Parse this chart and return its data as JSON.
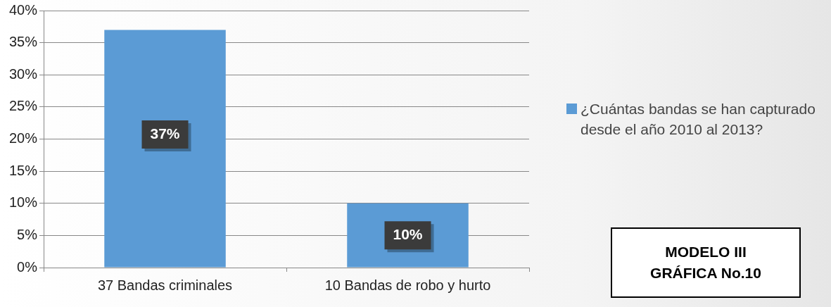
{
  "chart_data": {
    "type": "bar",
    "categories": [
      "37 Bandas criminales",
      "10 Bandas de robo y hurto"
    ],
    "series": [
      {
        "name": "¿Cuántas bandas se han capturado desde el año 2010 al 2013?",
        "color": "#5b9bd5",
        "values": [
          37,
          10
        ]
      }
    ],
    "value_labels": [
      "37%",
      "10%"
    ],
    "ylim": [
      0,
      40
    ],
    "yticks": [
      {
        "value": 0,
        "label": "0%"
      },
      {
        "value": 5,
        "label": "5%"
      },
      {
        "value": 10,
        "label": "10%"
      },
      {
        "value": 15,
        "label": "15%"
      },
      {
        "value": 20,
        "label": "20%"
      },
      {
        "value": 25,
        "label": "25%"
      },
      {
        "value": 30,
        "label": "30%"
      },
      {
        "value": 35,
        "label": "35%"
      },
      {
        "value": 40,
        "label": "40%"
      }
    ],
    "grid": "y",
    "legend": "right",
    "annotations": [
      "MODELO III",
      "GRÁFICA No.10"
    ]
  }
}
